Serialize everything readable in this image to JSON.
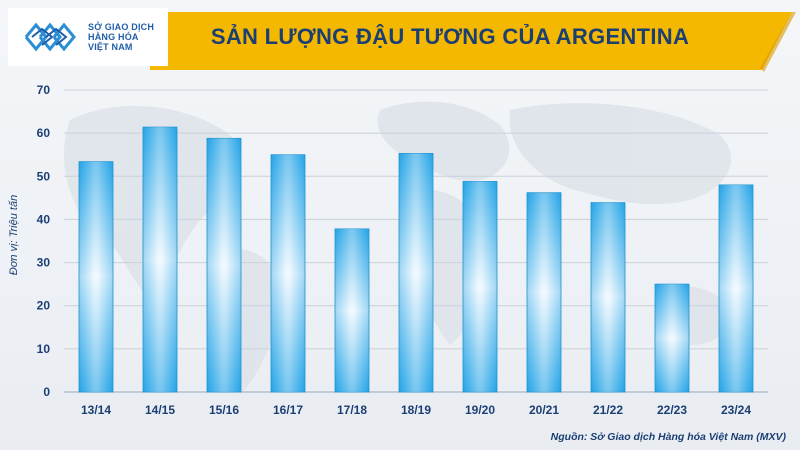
{
  "logo": {
    "text": "SỞ GIAO DỊCH\nHÀNG HÓA\nVIỆT NAM"
  },
  "colors": {
    "title_band": "#f5b800",
    "bar_edge": "#1b9be0",
    "bar_center": "#ffffff",
    "text": "#1c3f73"
  },
  "source": "Nguồn: Sở Giao dịch Hàng hóa Việt Nam (MXV)",
  "chart_data": {
    "type": "bar",
    "title": "SẢN LƯỢNG ĐẬU TƯƠNG CỦA ARGENTINA",
    "xlabel": "",
    "ylabel": "Đơn vị: Triệu tấn",
    "categories": [
      "13/14",
      "14/15",
      "15/16",
      "16/17",
      "17/18",
      "18/19",
      "19/20",
      "20/21",
      "21/22",
      "22/23",
      "23/24"
    ],
    "values": [
      53.4,
      61.4,
      58.8,
      55.0,
      37.8,
      55.3,
      48.8,
      46.2,
      43.9,
      25.0,
      48.0
    ],
    "ylim": [
      0,
      70
    ],
    "yticks": [
      0,
      10,
      20,
      30,
      40,
      50,
      60,
      70
    ],
    "grid": true,
    "legend": "none"
  }
}
